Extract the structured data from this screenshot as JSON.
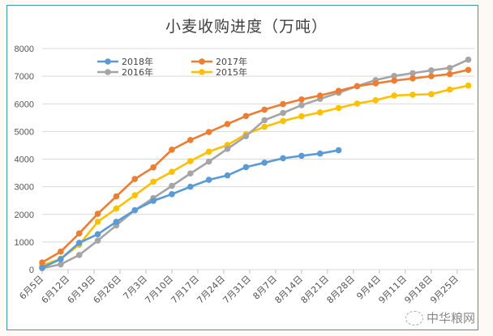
{
  "chart_data": {
    "type": "line",
    "title": "小麦收购进度（万吨）",
    "xlabel": "",
    "ylabel": "",
    "ylim": [
      0,
      8000
    ],
    "yticks": [
      0,
      1000,
      2000,
      3000,
      4000,
      5000,
      6000,
      7000,
      8000
    ],
    "xtick_labels": [
      "6月5日",
      "6月12日",
      "6月19日",
      "6月26日",
      "7月3日",
      "7月10日",
      "7月17日",
      "7月24日",
      "7月31日",
      "8月7日",
      "8月14日",
      "8月21日",
      "8月28日",
      "9月4日",
      "9月11日",
      "9月18日",
      "9月25日"
    ],
    "xtick_step_days": 7,
    "point_step_days": 5,
    "grid": true,
    "legend_position": "top-left",
    "series": [
      {
        "name": "2018年",
        "color": "#5b9bd5",
        "values": [
          70,
          380,
          970,
          1280,
          1730,
          2150,
          2490,
          2730,
          3000,
          3250,
          3410,
          3710,
          3870,
          4030,
          4120,
          4200,
          4320
        ]
      },
      {
        "name": "2017年",
        "color": "#ed7d31",
        "values": [
          260,
          650,
          1310,
          2020,
          2650,
          3280,
          3700,
          4340,
          4690,
          4980,
          5270,
          5560,
          5790,
          5990,
          6160,
          6300,
          6470,
          6640,
          6740,
          6840,
          6920,
          7000,
          7080,
          7230
        ]
      },
      {
        "name": "2016年",
        "color": "#a5a5a5",
        "values": [
          50,
          190,
          530,
          1050,
          1600,
          2150,
          2590,
          3030,
          3480,
          3910,
          4370,
          4830,
          5410,
          5670,
          5950,
          6180,
          6400,
          6640,
          6860,
          7010,
          7110,
          7210,
          7300,
          7600
        ]
      },
      {
        "name": "2015年",
        "color": "#ffc000",
        "values": [
          150,
          390,
          900,
          1730,
          2210,
          2690,
          3180,
          3540,
          3930,
          4270,
          4510,
          4900,
          5170,
          5380,
          5550,
          5690,
          5850,
          6010,
          6130,
          6300,
          6330,
          6350,
          6520,
          6660
        ]
      }
    ]
  },
  "watermark": "中华粮网"
}
